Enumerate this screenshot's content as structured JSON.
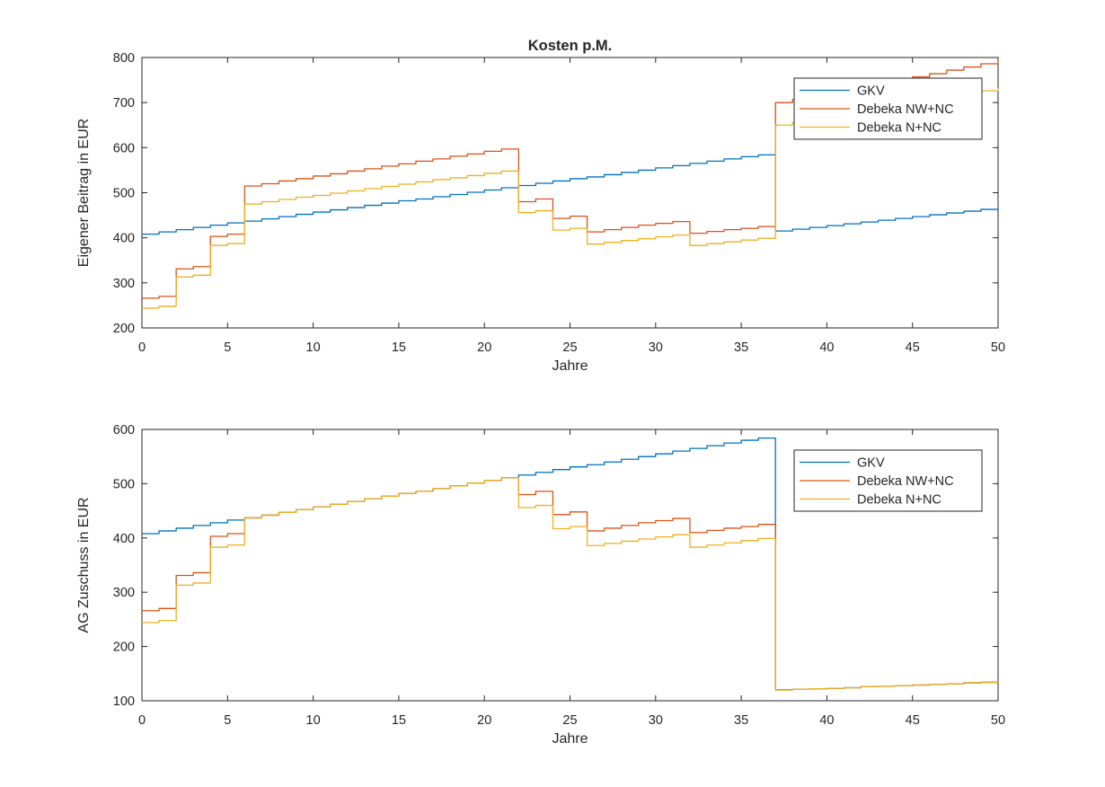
{
  "figure": {
    "title": "Kosten p.M.",
    "background": "#ffffff"
  },
  "palette": {
    "gkv_blue": "#0072BD",
    "debeka_nw_nc_orange": "#D95319",
    "debeka_n_nc_yellow": "#EDB120",
    "axis": "#262626",
    "title_text": "#000000",
    "legend_background": "#ffffff"
  },
  "chart_data": [
    {
      "type": "line",
      "line_style": "stairs",
      "title": "Kosten p.M.",
      "xlabel": "Jahre",
      "ylabel": "Eigener Beitrag in EUR",
      "xlim": [
        0,
        50
      ],
      "ylim": [
        200,
        800
      ],
      "xticks": [
        0,
        5,
        10,
        15,
        20,
        25,
        30,
        35,
        40,
        45,
        50
      ],
      "yticks": [
        200,
        300,
        400,
        500,
        600,
        700,
        800
      ],
      "grid": false,
      "legend": {
        "position": "northeast-inside",
        "entries": [
          "GKV",
          "Debeka NW+NC",
          "Debeka N+NC"
        ]
      },
      "x": [
        0,
        1,
        2,
        3,
        4,
        5,
        6,
        7,
        8,
        9,
        10,
        11,
        12,
        13,
        14,
        15,
        16,
        17,
        18,
        19,
        20,
        21,
        22,
        23,
        24,
        25,
        26,
        27,
        28,
        29,
        30,
        31,
        32,
        33,
        34,
        35,
        36,
        37,
        38,
        39,
        40,
        41,
        42,
        43,
        44,
        45,
        46,
        47,
        48,
        49,
        50
      ],
      "series": [
        {
          "name": "GKV",
          "color": "#0072BD",
          "y": [
            408,
            413,
            418,
            423,
            428,
            433,
            437,
            442,
            447,
            452,
            457,
            462,
            467,
            472,
            477,
            482,
            486,
            491,
            496,
            501,
            506,
            511,
            516,
            521,
            526,
            531,
            535,
            540,
            545,
            550,
            555,
            560,
            565,
            570,
            575,
            580,
            584,
            415,
            419,
            423,
            427,
            431,
            435,
            439,
            443,
            447,
            451,
            455,
            459,
            463,
            467
          ]
        },
        {
          "name": "Debeka NW+NC",
          "color": "#D95319",
          "y": [
            266,
            270,
            331,
            336,
            403,
            408,
            515,
            520,
            526,
            531,
            537,
            542,
            548,
            553,
            559,
            564,
            570,
            575,
            581,
            586,
            592,
            597,
            480,
            486,
            443,
            448,
            413,
            418,
            423,
            428,
            432,
            436,
            410,
            414,
            418,
            421,
            425,
            700,
            707,
            714,
            721,
            728,
            736,
            743,
            750,
            757,
            764,
            772,
            779,
            786,
            793
          ]
        },
        {
          "name": "Debeka N+NC",
          "color": "#EDB120",
          "y": [
            244,
            248,
            313,
            317,
            383,
            387,
            475,
            480,
            485,
            490,
            494,
            499,
            504,
            509,
            514,
            519,
            524,
            529,
            533,
            538,
            543,
            548,
            456,
            460,
            417,
            421,
            386,
            390,
            394,
            398,
            402,
            406,
            383,
            387,
            391,
            395,
            399,
            650,
            656,
            663,
            669,
            675,
            682,
            688,
            694,
            701,
            707,
            713,
            720,
            726,
            732
          ]
        }
      ]
    },
    {
      "type": "line",
      "line_style": "stairs",
      "title": "",
      "xlabel": "Jahre",
      "ylabel": "AG Zuschuss in EUR",
      "xlim": [
        0,
        50
      ],
      "ylim": [
        100,
        600
      ],
      "xticks": [
        0,
        5,
        10,
        15,
        20,
        25,
        30,
        35,
        40,
        45,
        50
      ],
      "yticks": [
        100,
        200,
        300,
        400,
        500,
        600
      ],
      "grid": false,
      "legend": {
        "position": "northeast-inside",
        "entries": [
          "GKV",
          "Debeka NW+NC",
          "Debeka N+NC"
        ]
      },
      "x": [
        0,
        1,
        2,
        3,
        4,
        5,
        6,
        7,
        8,
        9,
        10,
        11,
        12,
        13,
        14,
        15,
        16,
        17,
        18,
        19,
        20,
        21,
        22,
        23,
        24,
        25,
        26,
        27,
        28,
        29,
        30,
        31,
        32,
        33,
        34,
        35,
        36,
        37,
        38,
        39,
        40,
        41,
        42,
        43,
        44,
        45,
        46,
        47,
        48,
        49,
        50
      ],
      "series": [
        {
          "name": "GKV",
          "color": "#0072BD",
          "y": [
            408,
            413,
            418,
            423,
            428,
            433,
            437,
            442,
            447,
            452,
            457,
            462,
            467,
            472,
            477,
            482,
            486,
            491,
            496,
            501,
            506,
            511,
            516,
            521,
            526,
            531,
            535,
            540,
            545,
            550,
            555,
            560,
            565,
            570,
            575,
            580,
            584,
            120,
            121,
            122,
            123,
            124,
            126,
            127,
            128,
            129,
            130,
            131,
            133,
            134,
            135
          ]
        },
        {
          "name": "Debeka NW+NC",
          "color": "#D95319",
          "y": [
            266,
            270,
            331,
            336,
            403,
            408,
            437,
            442,
            447,
            452,
            457,
            462,
            467,
            472,
            477,
            482,
            486,
            491,
            496,
            501,
            506,
            511,
            480,
            486,
            443,
            448,
            413,
            418,
            423,
            428,
            432,
            436,
            410,
            414,
            418,
            421,
            425,
            120,
            121,
            122,
            123,
            124,
            126,
            127,
            128,
            129,
            130,
            131,
            133,
            134,
            135
          ]
        },
        {
          "name": "Debeka N+NC",
          "color": "#EDB120",
          "y": [
            244,
            248,
            313,
            317,
            383,
            387,
            437,
            442,
            447,
            452,
            457,
            462,
            467,
            472,
            477,
            482,
            486,
            491,
            496,
            501,
            506,
            511,
            456,
            460,
            417,
            421,
            386,
            390,
            394,
            398,
            402,
            406,
            383,
            387,
            391,
            395,
            399,
            120,
            121,
            122,
            123,
            124,
            126,
            127,
            128,
            129,
            130,
            131,
            133,
            134,
            135
          ]
        }
      ]
    }
  ]
}
